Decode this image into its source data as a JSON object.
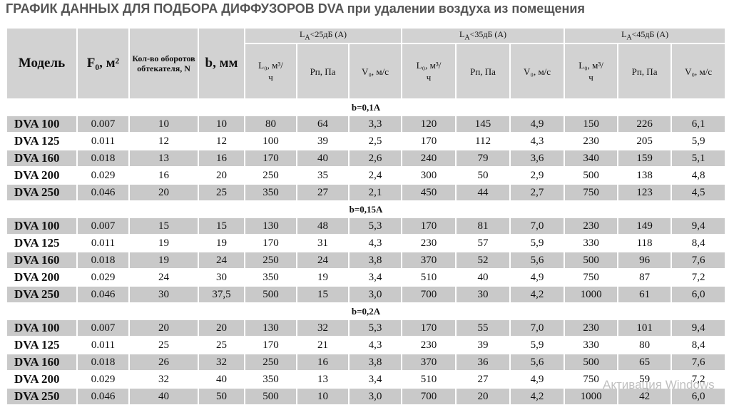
{
  "title": "ГРАФИК ДАННЫХ ДЛЯ ПОДБОРА ДИФФУЗОРОВ DVA при удалении воздуха из помещения",
  "header": {
    "fixed": [
      "Модель",
      "F₀, м²",
      "Кол-во оборотов обтекателя, N",
      "b, мм"
    ],
    "groups": [
      {
        "label": {
          "main": "L",
          "sub": "A",
          "rest": "<25дБ (A)"
        },
        "columns": [
          "L₀, м³/ч",
          "Рп, Па",
          "V₀, м/с"
        ]
      },
      {
        "label": {
          "main": "L",
          "sub": "A",
          "rest": "<35дБ (A)"
        },
        "columns": [
          "L₀, м³/ч",
          "Рп, Па",
          "V₀, м/с"
        ]
      },
      {
        "label": {
          "main": "L",
          "sub": "A",
          "rest": "<45дБ (A)"
        },
        "columns": [
          "L₀, м³/ч",
          "Рп, Па",
          "V₀, м/с"
        ]
      }
    ]
  },
  "sections": [
    {
      "label": "b=0,1A",
      "rows": [
        [
          "DVA 100",
          "0.007",
          "10",
          "10",
          "80",
          "64",
          "3,3",
          "120",
          "145",
          "4,9",
          "150",
          "226",
          "6,1"
        ],
        [
          "DVA 125",
          "0.011",
          "12",
          "12",
          "100",
          "39",
          "2,5",
          "170",
          "112",
          "4,3",
          "230",
          "205",
          "5,9"
        ],
        [
          "DVA 160",
          "0.018",
          "13",
          "16",
          "170",
          "40",
          "2,6",
          "240",
          "79",
          "3,6",
          "340",
          "159",
          "5,1"
        ],
        [
          "DVA 200",
          "0.029",
          "16",
          "20",
          "250",
          "35",
          "2,4",
          "300",
          "50",
          "2,9",
          "500",
          "138",
          "4,8"
        ],
        [
          "DVA 250",
          "0.046",
          "20",
          "25",
          "350",
          "27",
          "2,1",
          "450",
          "44",
          "2,7",
          "750",
          "123",
          "4,5"
        ]
      ]
    },
    {
      "label": "b=0,15A",
      "rows": [
        [
          "DVA 100",
          "0.007",
          "15",
          "15",
          "130",
          "48",
          "5,3",
          "170",
          "81",
          "7,0",
          "230",
          "149",
          "9,4"
        ],
        [
          "DVA 125",
          "0.011",
          "19",
          "19",
          "170",
          "31",
          "4,3",
          "230",
          "57",
          "5,9",
          "330",
          "118",
          "8,4"
        ],
        [
          "DVA 160",
          "0.018",
          "19",
          "24",
          "250",
          "24",
          "3,8",
          "370",
          "52",
          "5,6",
          "500",
          "96",
          "7,6"
        ],
        [
          "DVA 200",
          "0.029",
          "24",
          "30",
          "350",
          "19",
          "3,4",
          "510",
          "40",
          "4,9",
          "750",
          "87",
          "7,2"
        ],
        [
          "DVA 250",
          "0.046",
          "30",
          "37,5",
          "500",
          "15",
          "3,0",
          "700",
          "30",
          "4,2",
          "1000",
          "61",
          "6,0"
        ]
      ]
    },
    {
      "label": "b=0,2A",
      "rows": [
        [
          "DVA 100",
          "0.007",
          "20",
          "20",
          "130",
          "32",
          "5,3",
          "170",
          "55",
          "7,0",
          "230",
          "101",
          "9,4"
        ],
        [
          "DVA 125",
          "0.011",
          "25",
          "25",
          "170",
          "21",
          "4,3",
          "230",
          "39",
          "5,9",
          "330",
          "80",
          "8,4"
        ],
        [
          "DVA 160",
          "0.018",
          "26",
          "32",
          "250",
          "16",
          "3,8",
          "370",
          "36",
          "5,6",
          "500",
          "65",
          "7,6"
        ],
        [
          "DVA 200",
          "0.029",
          "32",
          "40",
          "350",
          "13",
          "3,4",
          "510",
          "27",
          "4,9",
          "750",
          "59",
          "7,2"
        ],
        [
          "DVA 250",
          "0.046",
          "40",
          "50",
          "500",
          "10",
          "3,0",
          "700",
          "20",
          "4,2",
          "1000",
          "42",
          "6,0"
        ]
      ]
    }
  ],
  "watermark": "Активация Windows"
}
